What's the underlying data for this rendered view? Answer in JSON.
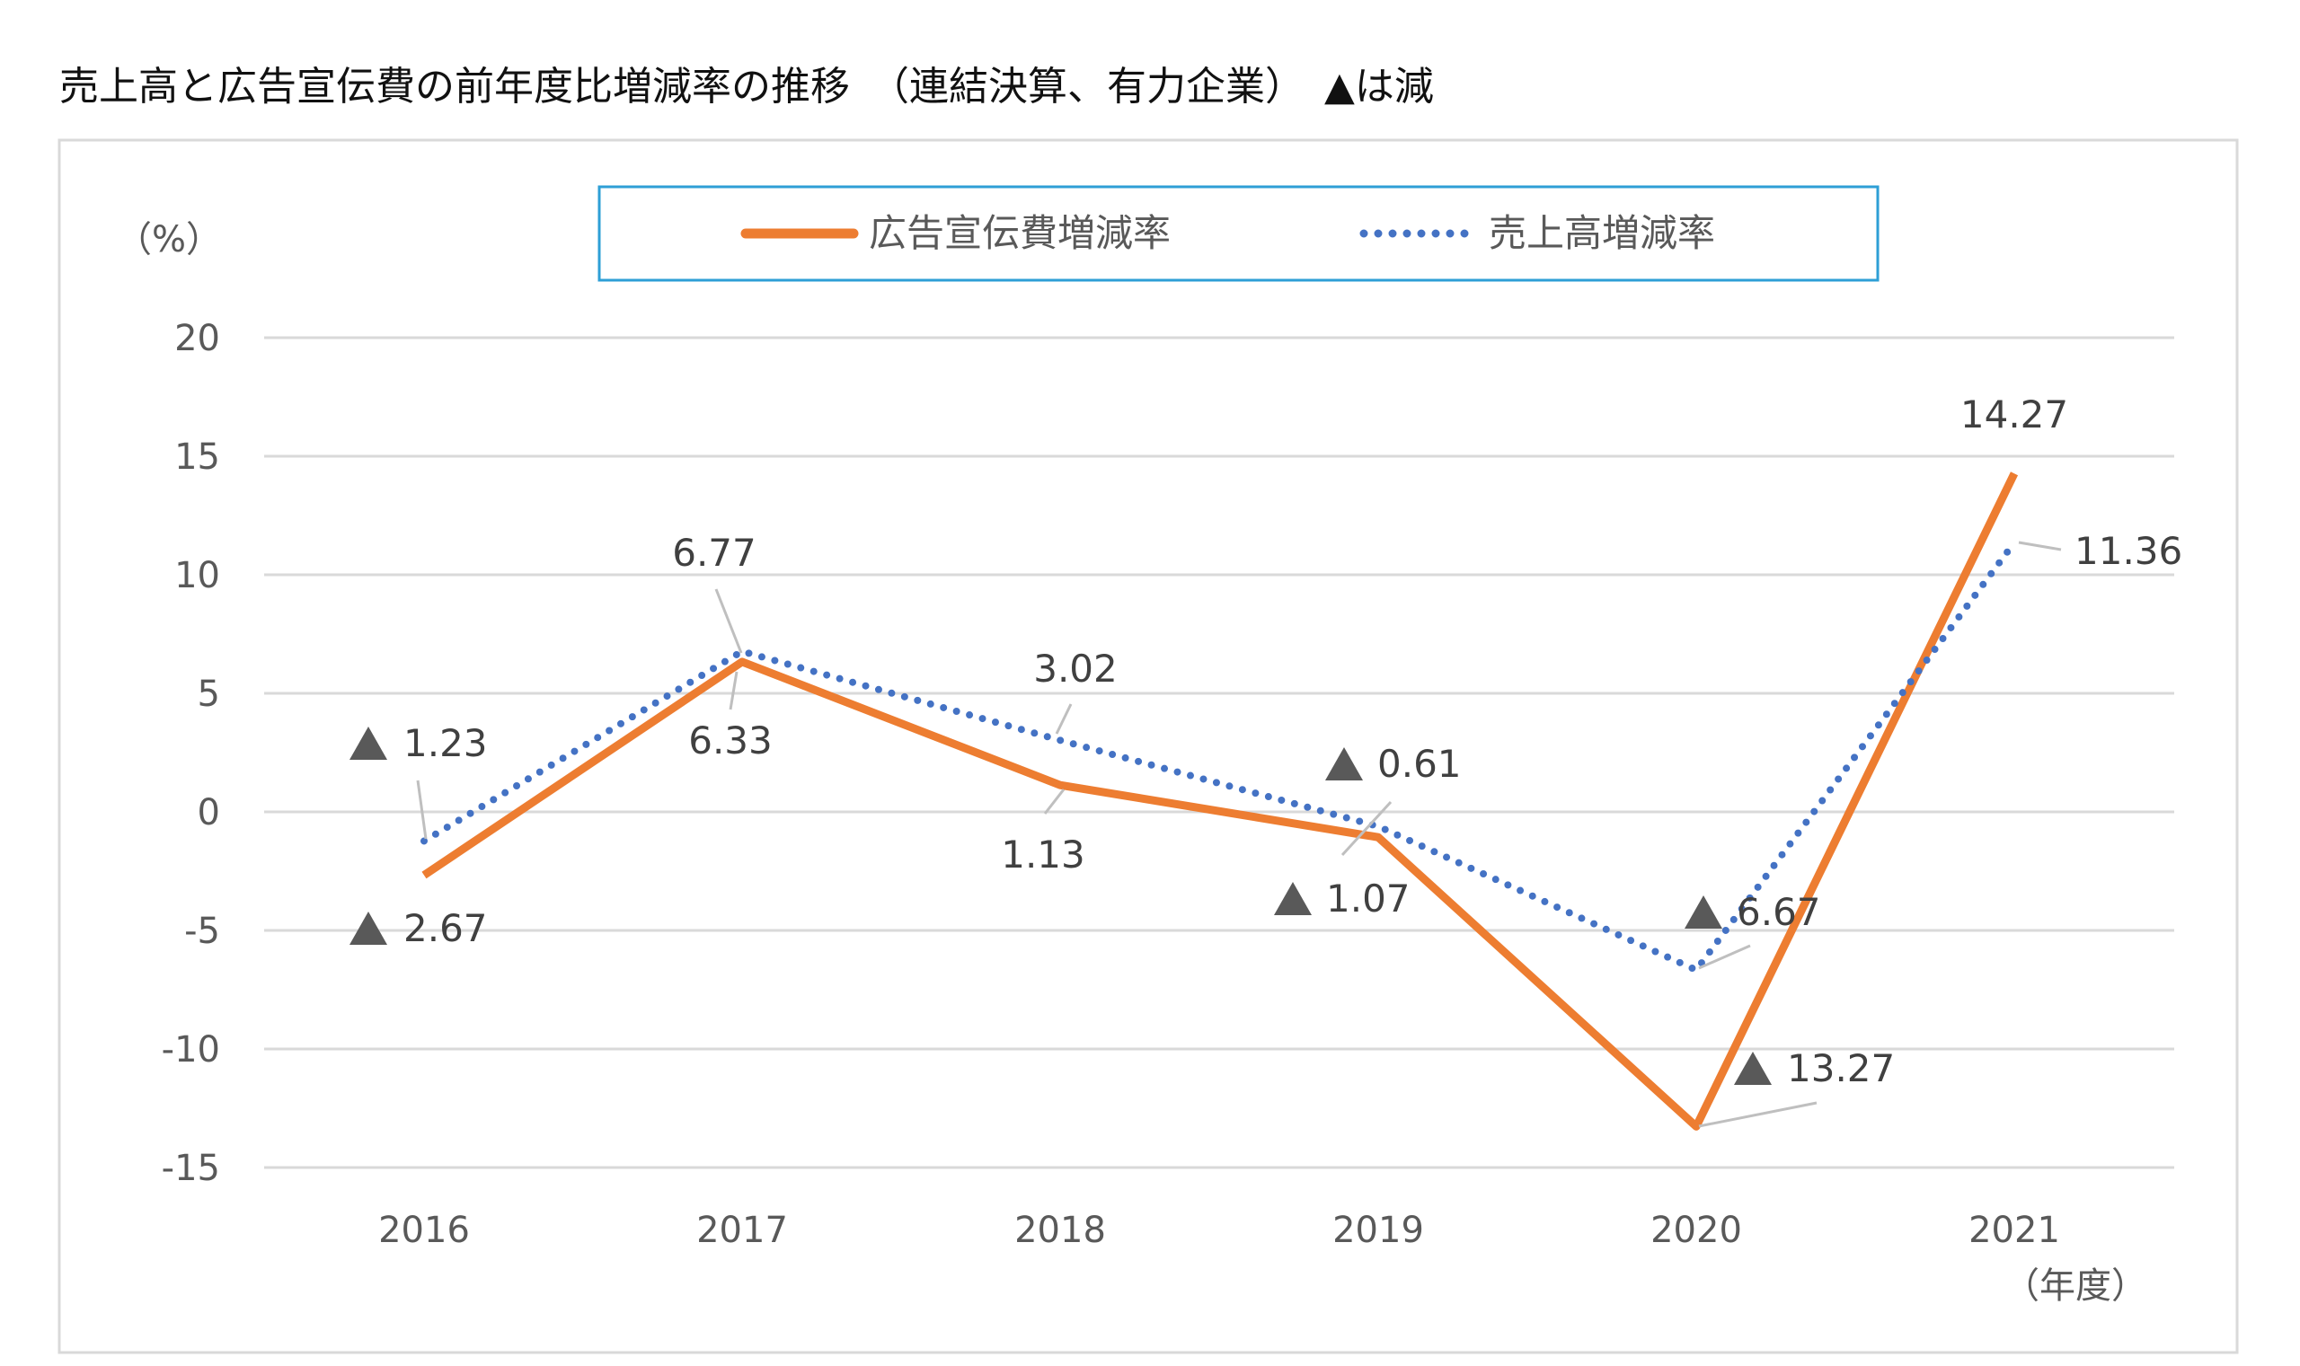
{
  "title": "売上高と広告宣伝費の前年度比増減率の推移　（連結決算、有力企業）　▲は減",
  "chart_data": {
    "type": "line",
    "title": "売上高と広告宣伝費の前年度比増減率の推移　（連結決算、有力企業）　▲は減",
    "ylabel": "（%）",
    "xlabel": "（年度）",
    "categories": [
      "2016",
      "2017",
      "2018",
      "2019",
      "2020",
      "2021"
    ],
    "ylim": [
      -15,
      20
    ],
    "yticks": [
      "20",
      "15",
      "10",
      "5",
      "0",
      "-5",
      "-10",
      "-15"
    ],
    "grid": true,
    "legend_position": "top",
    "series": [
      {
        "name": "広告宣伝費増減率",
        "color": "#ED7D31",
        "style": "solid",
        "values": [
          -2.67,
          6.33,
          1.13,
          -1.07,
          -13.27,
          14.27
        ],
        "labels": [
          "2.67",
          "6.33",
          "1.13",
          "1.07",
          "13.27",
          "14.27"
        ]
      },
      {
        "name": "売上高増減率",
        "color": "#4472C4",
        "style": "dotted",
        "values": [
          -1.23,
          6.77,
          3.02,
          -0.61,
          -6.67,
          11.36
        ],
        "labels": [
          "1.23",
          "6.77",
          "3.02",
          "0.61",
          "6.67",
          "11.36"
        ]
      }
    ],
    "negative_marker": "▲"
  }
}
